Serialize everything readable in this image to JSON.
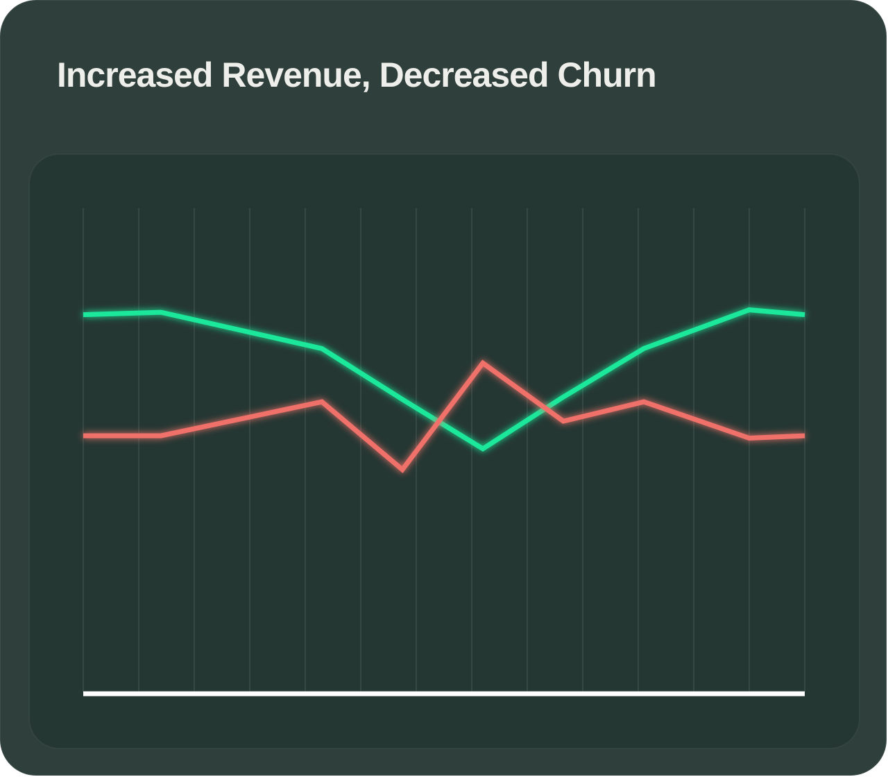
{
  "title": "Increased Revenue, Decreased Churn",
  "chart_data": {
    "type": "line",
    "title": "Increased Revenue, Decreased Churn",
    "xlabel": "",
    "ylabel": "",
    "x": [
      0,
      1.4,
      4.3,
      5.75,
      7.2,
      8.65,
      10.1,
      12.0,
      13.0
    ],
    "xlim": [
      0,
      13
    ],
    "ylim": [
      0,
      100
    ],
    "grid": "vertical",
    "legend": "none",
    "series": [
      {
        "color": "#1de89b",
        "values": [
          78.0,
          78.5,
          71.0,
          60.5,
          50.3,
          61.0,
          71.0,
          79.0,
          78.0
        ]
      },
      {
        "color": "#f0716b",
        "values": [
          53.0,
          53.0,
          60.0,
          46.0,
          68.0,
          56.0,
          60.0,
          52.5,
          53.0
        ]
      }
    ],
    "colors": {
      "card": "#2f3f3b",
      "plot_background": "#253733",
      "grid": "#3c4e49",
      "baseline": "#ffffff",
      "title_text": "#eeeeea"
    }
  }
}
